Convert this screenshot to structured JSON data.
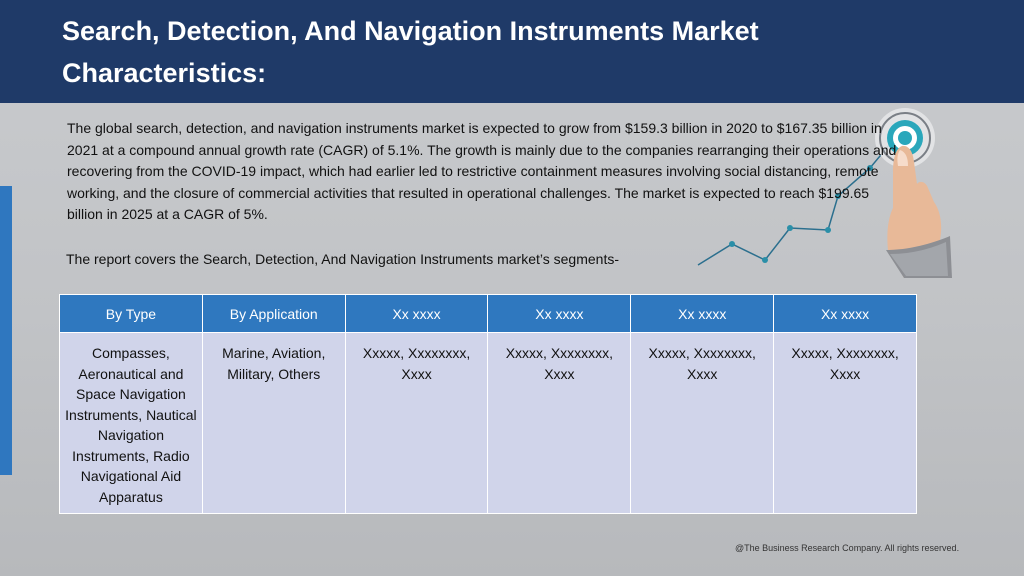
{
  "header": {
    "title_line1": "Search, Detection, And Navigation Instruments Market",
    "title_line2": "Characteristics:"
  },
  "body": {
    "paragraph": "The global search, detection, and navigation instruments market is expected to grow from $159.3 billion in 2020 to $167.35 billion in 2021 at a compound annual growth rate (CAGR) of 5.1%. The growth is mainly due to the companies rearranging their operations and recovering from the COVID-19 impact, which had earlier led to restrictive containment measures involving social distancing, remote working, and the closure of commercial activities that resulted in operational challenges. The market is expected to reach $199.65 billion in 2025 at a CAGR of 5%.",
    "segments_intro": "The report covers the Search, Detection, And Navigation Instruments market’s segments-"
  },
  "table": {
    "headers": [
      "By Type",
      "By Application",
      "Xx xxxx",
      "Xx xxxx",
      "Xx xxxx",
      "Xx xxxx"
    ],
    "cells": [
      "Compasses, Aeronautical and Space Navigation Instruments, Nautical Navigation Instruments, Radio Navigational Aid Apparatus",
      "Marine, Aviation, Military, Others",
      "Xxxxx, Xxxxxxxx, Xxxx",
      "Xxxxx, Xxxxxxxx, Xxxx",
      "Xxxxx, Xxxxxxxx, Xxxx",
      "Xxxxx, Xxxxxxxx, Xxxx"
    ]
  },
  "footer": {
    "copyright": "@The Business Research Company. All rights reserved."
  },
  "colors": {
    "header_bg": "#1f3a68",
    "accent_blue": "#2f78bf",
    "table_cell_bg": "#d0d4ea",
    "background": "#c3c5c8",
    "chart_line": "#2b6f8e"
  },
  "icons": {
    "illustration": "hand-touching-target-graph-icon"
  }
}
